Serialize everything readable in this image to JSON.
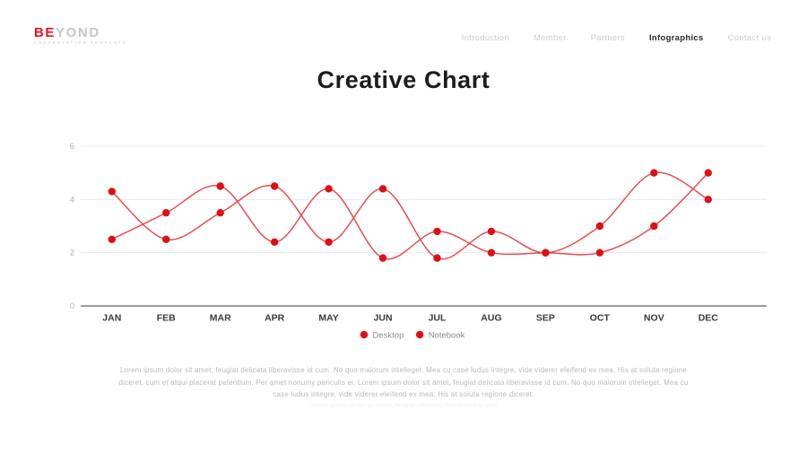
{
  "brand": {
    "name_bold": "BE",
    "name_light": "YOND",
    "tagline": "PRESENTATION TEMPLATE"
  },
  "nav": {
    "items": [
      {
        "label": "Introduction",
        "active": false
      },
      {
        "label": "Member",
        "active": false
      },
      {
        "label": "Partners",
        "active": false
      },
      {
        "label": "Infographics",
        "active": true
      },
      {
        "label": "Contact us",
        "active": false
      }
    ]
  },
  "title": "Creative Chart",
  "chart_data": {
    "type": "line",
    "categories": [
      "JAN",
      "FEB",
      "MAR",
      "APR",
      "MAY",
      "JUN",
      "JUL",
      "AUG",
      "SEP",
      "OCT",
      "NOV",
      "DEC"
    ],
    "series": [
      {
        "name": "Desktop",
        "color": "#e01418",
        "values": [
          4.3,
          2.5,
          3.5,
          4.5,
          2.4,
          4.4,
          1.8,
          2.8,
          2.0,
          3.0,
          5.0,
          4.0
        ]
      },
      {
        "name": "Notebook",
        "color": "#e01418",
        "values": [
          2.5,
          3.5,
          4.5,
          2.4,
          4.4,
          1.8,
          2.8,
          2.0,
          2.0,
          2.0,
          3.0,
          5.0
        ]
      }
    ],
    "title": "Creative Chart",
    "xlabel": "",
    "ylabel": "",
    "ylim": [
      0,
      6
    ],
    "yticks": [
      0,
      2,
      4,
      6
    ],
    "grid": true,
    "legend_position": "bottom",
    "curve": "smooth"
  },
  "footer": {
    "text": "Lorem ipsum dolor sit amet, feugiat delicata liberavisse id cum. No quo maiorum intelleget. Mea cu case ludus integre, vide viderer eleifend ex mea. His at soluta regione diceret, cum et atqui placerat petentium. Per amet nonumy periculis ei. Lorem ipsum dolor sit amet, feugiat delicata liberavisse id cum. No quo maiorum intelleget. Mea cu case ludus integre, vide viderer eleifend ex mea. His at soluta regione diceret.",
    "subtext": "Lorem ipsum dolor sit amet, feugiat delicata liberavisse id cum"
  },
  "colors": {
    "accent": "#e8131d",
    "line_red": "#e23c3e",
    "point_red": "#e00d14",
    "grid": "#e8e8e8",
    "axis": "#9b9b9b",
    "tick_label": "#b0b0b0",
    "month_label": "#3a3a3a",
    "legend_label": "#8b8b8b"
  }
}
